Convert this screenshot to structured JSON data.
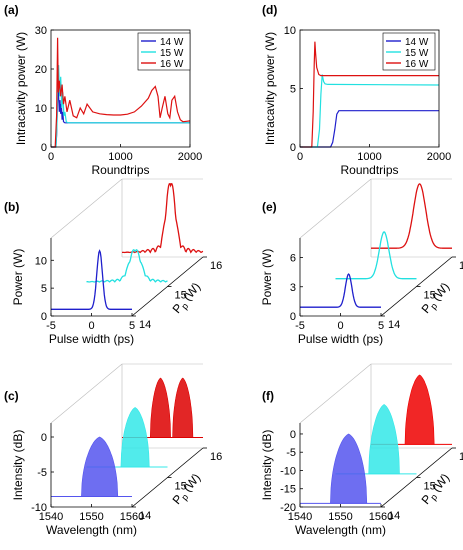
{
  "chart_data": [
    {
      "panel": "(a)",
      "type": "line",
      "xlabel": "Roundtrips",
      "ylabel": "Intracavity power (W)",
      "xlim": [
        0,
        2000
      ],
      "ylim": [
        0,
        30
      ],
      "xticks": [
        "0",
        "1000",
        "2000"
      ],
      "yticks": [
        "0",
        "10",
        "20",
        "30"
      ],
      "legend_position": "top-right",
      "series": [
        {
          "name": "14 W",
          "color": "#1f1fcc",
          "x": [
            0,
            70,
            80,
            90,
            100,
            110,
            120,
            130,
            140,
            150,
            160,
            170,
            180,
            200,
            230,
            260,
            300,
            2000
          ],
          "y": [
            0,
            0,
            3,
            10,
            17,
            13,
            9,
            12,
            8.5,
            11,
            7,
            9,
            6.5,
            6.2,
            6.2,
            6.2,
            6.2,
            6.2
          ]
        },
        {
          "name": "15 W",
          "color": "#22e0e0",
          "x": [
            0,
            70,
            85,
            95,
            110,
            125,
            140,
            155,
            170,
            185,
            200,
            220,
            250,
            300,
            2000
          ],
          "y": [
            0,
            0,
            5,
            17,
            21,
            13,
            18,
            10,
            14,
            8,
            9,
            6.4,
            6.2,
            6.2,
            6.2
          ]
        },
        {
          "name": "16 W",
          "color": "#dd1111",
          "x": [
            0,
            60,
            80,
            95,
            105,
            120,
            140,
            160,
            180,
            200,
            230,
            270,
            320,
            370,
            420,
            470,
            520,
            600,
            700,
            800,
            900,
            1000,
            1100,
            1200,
            1300,
            1400,
            1450,
            1500,
            1540,
            1570,
            1600,
            1640,
            1680,
            1710,
            1740,
            1780,
            1820,
            1860,
            1900,
            1950,
            2000
          ],
          "y": [
            0,
            0,
            8,
            28,
            14,
            17,
            13,
            16,
            11,
            13,
            9,
            12,
            8,
            7.5,
            10,
            8.5,
            11,
            9,
            8.5,
            8.3,
            8.2,
            8.2,
            8.4,
            9,
            10.5,
            12.5,
            14.5,
            15.5,
            13,
            7.5,
            10,
            13,
            8.5,
            7.5,
            12,
            13,
            9,
            7,
            6.5,
            6.6,
            6.7
          ]
        }
      ]
    },
    {
      "panel": "(d)",
      "type": "line",
      "xlabel": "Roundtrips",
      "ylabel": "Intracavity power (W)",
      "xlim": [
        0,
        2000
      ],
      "ylim": [
        0,
        10
      ],
      "xticks": [
        "0",
        "1000",
        "2000"
      ],
      "yticks": [
        "0",
        "5",
        "10"
      ],
      "legend_position": "top-right",
      "series": [
        {
          "name": "14 W",
          "color": "#1f1fcc",
          "x": [
            0,
            440,
            470,
            500,
            530,
            560,
            600,
            2000
          ],
          "y": [
            0,
            0,
            0.4,
            1.5,
            2.8,
            3.1,
            3.1,
            3.1
          ]
        },
        {
          "name": "15 W",
          "color": "#22e0e0",
          "x": [
            0,
            250,
            280,
            300,
            320,
            340,
            360,
            400,
            2000
          ],
          "y": [
            0,
            0,
            1.5,
            4.5,
            6.2,
            5.6,
            5.4,
            5.35,
            5.3
          ]
        },
        {
          "name": "16 W",
          "color": "#dd1111",
          "x": [
            0,
            170,
            190,
            205,
            215,
            225,
            240,
            270,
            300,
            2000
          ],
          "y": [
            0,
            0,
            3,
            7,
            9,
            8,
            6.8,
            6.2,
            6.1,
            6.1
          ]
        }
      ]
    },
    {
      "panel": "(b)",
      "type": "line",
      "xlabel": "Pulse width (ps)",
      "ylabel": "Power (W)",
      "depth_label": "P",
      "depth_label_sub": "p",
      "depth_label_unit": " (W)",
      "xlim": [
        -5,
        5
      ],
      "ylim": [
        0,
        14
      ],
      "xticks": [
        "-5",
        "0",
        "5"
      ],
      "yticks": [
        "0",
        "5",
        "10"
      ],
      "depth_ticks": [
        "14",
        "15",
        "16"
      ],
      "series": [
        {
          "name": "14 W",
          "color": "#1f1fcc",
          "shape": "gauss",
          "center": 1,
          "width": 0.35,
          "amp": 10.5,
          "base": 1.2,
          "ripple": 0
        },
        {
          "name": "15 W",
          "color": "#22e0e0",
          "shape": "gauss",
          "center": 1,
          "width": 0.7,
          "amp": 5.5,
          "base": 0.8,
          "ripple": 0.6
        },
        {
          "name": "16 W",
          "color": "#dd1111",
          "shape": "gauss",
          "center": 1,
          "width": 0.55,
          "amp": 12,
          "base": 0.8,
          "ripple": 1.2
        }
      ]
    },
    {
      "panel": "(e)",
      "type": "line",
      "xlabel": "Pulse width (ps)",
      "ylabel": "Power (W)",
      "depth_label": "P",
      "depth_label_sub": "p",
      "depth_label_unit": " (W)",
      "xlim": [
        -5,
        5
      ],
      "ylim": [
        0,
        8
      ],
      "xticks": [
        "-5",
        "0",
        "5"
      ],
      "yticks": [
        "0",
        "3",
        "6"
      ],
      "depth_ticks": [
        "14",
        "15",
        "16"
      ],
      "series": [
        {
          "name": "14 W",
          "color": "#1f1fcc",
          "shape": "gauss",
          "center": 1,
          "width": 0.4,
          "amp": 3.4,
          "base": 0.9,
          "ripple": 0
        },
        {
          "name": "15 W",
          "color": "#22e0e0",
          "shape": "gauss",
          "center": 1,
          "width": 0.6,
          "amp": 4.8,
          "base": 0.8,
          "ripple": 0
        },
        {
          "name": "16 W",
          "color": "#dd1111",
          "shape": "gauss",
          "center": 1,
          "width": 0.75,
          "amp": 6.6,
          "base": 0.9,
          "ripple": 0
        }
      ]
    },
    {
      "panel": "(c)",
      "type": "area",
      "xlabel": "Wavelength (nm)",
      "ylabel": "Intensity (dB)",
      "depth_label": "P",
      "depth_label_sub": "p",
      "depth_label_unit": " (W)",
      "xlim": [
        1540,
        1560
      ],
      "ylim": [
        -10,
        2
      ],
      "xticks": [
        "1540",
        "1550",
        "1560"
      ],
      "yticks": [
        "-10",
        "-5",
        "0"
      ],
      "depth_ticks": [
        "14",
        "15",
        "16"
      ],
      "series": [
        {
          "name": "14 W",
          "color": "#5555ee",
          "shape": "dome",
          "lobes": [
            [
              1552,
              4.5
            ]
          ],
          "floor": -8.5
        },
        {
          "name": "15 W",
          "color": "#33e8e8",
          "shape": "dome",
          "lobes": [
            [
              1552,
              3.5
            ]
          ],
          "floor": -8.5
        },
        {
          "name": "16 W",
          "color": "#dd0000",
          "shape": "dome",
          "lobes": [
            [
              1549.5,
              2.5
            ],
            [
              1555,
              2.5
            ]
          ],
          "floor": -8.5
        }
      ]
    },
    {
      "panel": "(f)",
      "type": "area",
      "xlabel": "Wavelength (nm)",
      "ylabel": "Intensity (dB)",
      "depth_label": "P",
      "depth_label_sub": "p",
      "depth_label_unit": " (W)",
      "xlim": [
        1540,
        1560
      ],
      "ylim": [
        -20,
        3
      ],
      "xticks": [
        "1540",
        "1550",
        "1560"
      ],
      "yticks": [
        "-20",
        "-15",
        "-10",
        "-5",
        "0"
      ],
      "depth_ticks": [
        "14",
        "15",
        "16"
      ],
      "series": [
        {
          "name": "14 W",
          "color": "#5555ee",
          "shape": "dome",
          "lobes": [
            [
              1552,
              4.5
            ]
          ],
          "floor": -19
        },
        {
          "name": "15 W",
          "color": "#33e8e8",
          "shape": "dome",
          "lobes": [
            [
              1552,
              3.8
            ]
          ],
          "floor": -19
        },
        {
          "name": "16 W",
          "color": "#ee0000",
          "shape": "dome",
          "lobes": [
            [
              1552,
              3.6
            ]
          ],
          "floor": -19
        }
      ]
    }
  ]
}
